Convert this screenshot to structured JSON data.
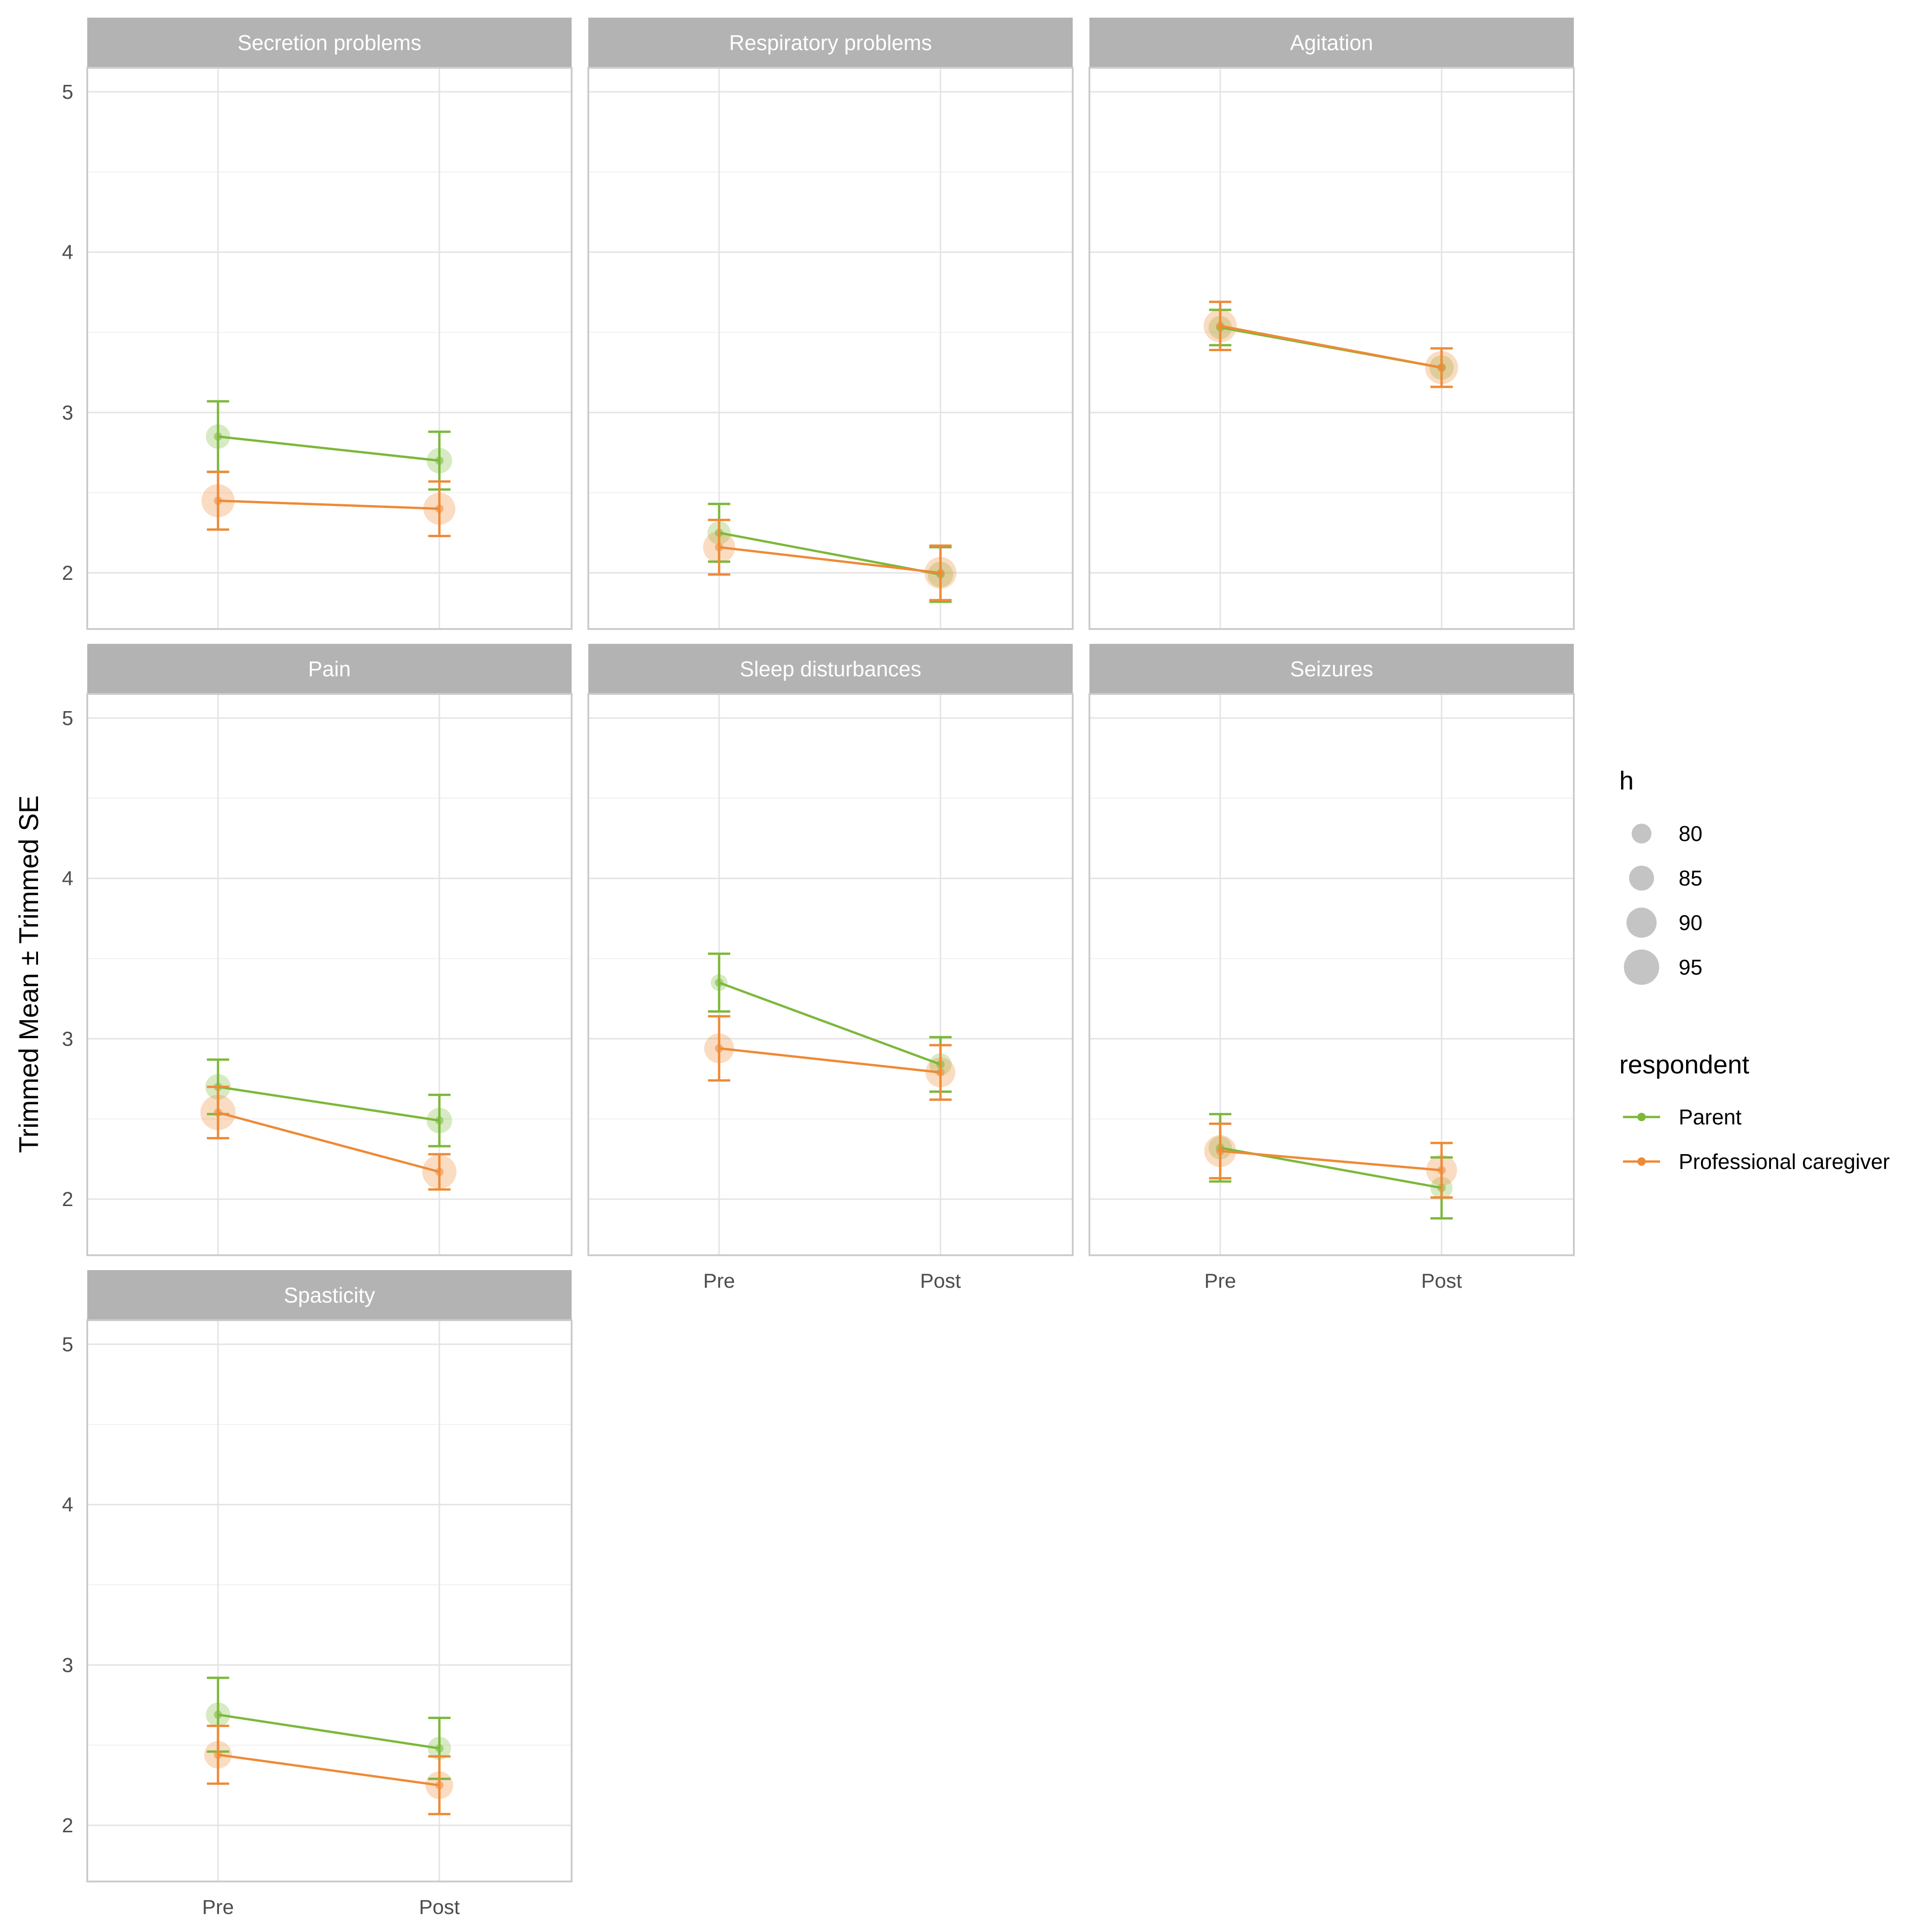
{
  "chart_data": {
    "type": "line",
    "ylabel": "Trimmed Mean ± Trimmed SE",
    "xlabel": "",
    "ylim": [
      1.65,
      5.15
    ],
    "y_ticks": [
      2,
      3,
      4,
      5
    ],
    "x_categories": [
      "Pre",
      "Post"
    ],
    "grid": true,
    "legend_position": "right",
    "size_legend": {
      "title": "h",
      "entries": [
        80,
        85,
        90,
        95
      ]
    },
    "color_legend": {
      "title": "respondent",
      "entries": [
        {
          "name": "Parent",
          "color": "#7cb83a"
        },
        {
          "name": "Professional caregiver",
          "color": "#ee8a36"
        }
      ]
    },
    "panels": [
      {
        "title": "Secretion problems",
        "series": [
          {
            "name": "Parent",
            "mean": [
              2.85,
              2.7
            ],
            "se": [
              0.22,
              0.18
            ],
            "h": [
              85,
              86
            ]
          },
          {
            "name": "Professional caregiver",
            "mean": [
              2.45,
              2.4
            ],
            "se": [
              0.18,
              0.17
            ],
            "h": [
              93,
              92
            ]
          }
        ]
      },
      {
        "title": "Respiratory problems",
        "series": [
          {
            "name": "Parent",
            "mean": [
              2.25,
              1.99
            ],
            "se": [
              0.18,
              0.17
            ],
            "h": [
              84,
              86
            ]
          },
          {
            "name": "Professional caregiver",
            "mean": [
              2.16,
              2.0
            ],
            "se": [
              0.17,
              0.17
            ],
            "h": [
              92,
              92
            ]
          }
        ]
      },
      {
        "title": "Agitation",
        "series": [
          {
            "name": "Parent",
            "mean": [
              3.53,
              3.28
            ],
            "se": [
              0.11,
              0.12
            ],
            "h": [
              84,
              85
            ]
          },
          {
            "name": "Professional caregiver",
            "mean": [
              3.54,
              3.28
            ],
            "se": [
              0.15,
              0.12
            ],
            "h": [
              93,
              93
            ]
          }
        ]
      },
      {
        "title": "Pain",
        "series": [
          {
            "name": "Parent",
            "mean": [
              2.7,
              2.49
            ],
            "se": [
              0.17,
              0.16
            ],
            "h": [
              86,
              86
            ]
          },
          {
            "name": "Professional caregiver",
            "mean": [
              2.54,
              2.17
            ],
            "se": [
              0.16,
              0.11
            ],
            "h": [
              95,
              94
            ]
          }
        ]
      },
      {
        "title": "Sleep disturbances",
        "series": [
          {
            "name": "Parent",
            "mean": [
              3.35,
              2.84
            ],
            "se": [
              0.18,
              0.17
            ],
            "h": [
              78,
              83
            ]
          },
          {
            "name": "Professional caregiver",
            "mean": [
              2.94,
              2.79
            ],
            "se": [
              0.2,
              0.17
            ],
            "h": [
              90,
              90
            ]
          }
        ]
      },
      {
        "title": "Seizures",
        "series": [
          {
            "name": "Parent",
            "mean": [
              2.32,
              2.07
            ],
            "se": [
              0.21,
              0.19
            ],
            "h": [
              84,
              83
            ]
          },
          {
            "name": "Professional caregiver",
            "mean": [
              2.3,
              2.18
            ],
            "se": [
              0.17,
              0.17
            ],
            "h": [
              92,
              91
            ]
          }
        ]
      },
      {
        "title": "Spasticity",
        "series": [
          {
            "name": "Parent",
            "mean": [
              2.69,
              2.48
            ],
            "se": [
              0.23,
              0.19
            ],
            "h": [
              85,
              84
            ]
          },
          {
            "name": "Professional caregiver",
            "mean": [
              2.44,
              2.25
            ],
            "se": [
              0.18,
              0.18
            ],
            "h": [
              88,
              88
            ]
          }
        ]
      }
    ]
  }
}
